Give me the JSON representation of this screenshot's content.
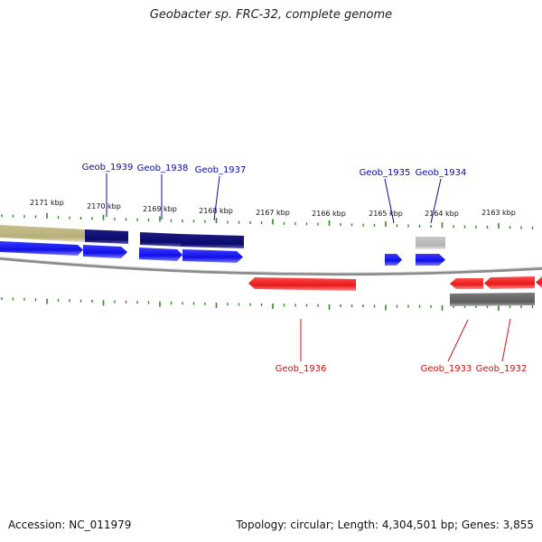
{
  "title": "Geobacter sp. FRC-32, complete genome",
  "footer": {
    "accession": "Accession: NC_011979",
    "summary": "Topology: circular; Length: 4,304,501 bp; Genes: 3,855"
  },
  "colors": {
    "forward_cds": "#1010e6",
    "reverse_cds": "#e61a1a",
    "gene_dark": "#0a0a6e",
    "gene_olive": "#b8b07a",
    "gene_grey": "#bdbdbd",
    "gene_dark_grey": "#6c6c6c",
    "tick": "#2a8a1e",
    "backbone": "#8c8c8c",
    "label_forward": "#0a0aa8",
    "label_reverse": "#c81414"
  },
  "ticks": [
    {
      "label": "2171 kbp"
    },
    {
      "label": "2170 kbp"
    },
    {
      "label": "2169 kbp"
    },
    {
      "label": "2168 kbp"
    },
    {
      "label": "2167 kbp"
    },
    {
      "label": "2166 kbp"
    },
    {
      "label": "2165 kbp"
    },
    {
      "label": "2164 kbp"
    },
    {
      "label": "2163 kbp"
    }
  ],
  "gene_labels": [
    {
      "name": "Geob_1939",
      "strand": "forward"
    },
    {
      "name": "Geob_1938",
      "strand": "forward"
    },
    {
      "name": "Geob_1937",
      "strand": "forward"
    },
    {
      "name": "Geob_1935",
      "strand": "forward"
    },
    {
      "name": "Geob_1934",
      "strand": "forward"
    },
    {
      "name": "Geob_1936",
      "strand": "reverse"
    },
    {
      "name": "Geob_1933",
      "strand": "reverse"
    },
    {
      "name": "Geob_1932",
      "strand": "reverse"
    }
  ]
}
